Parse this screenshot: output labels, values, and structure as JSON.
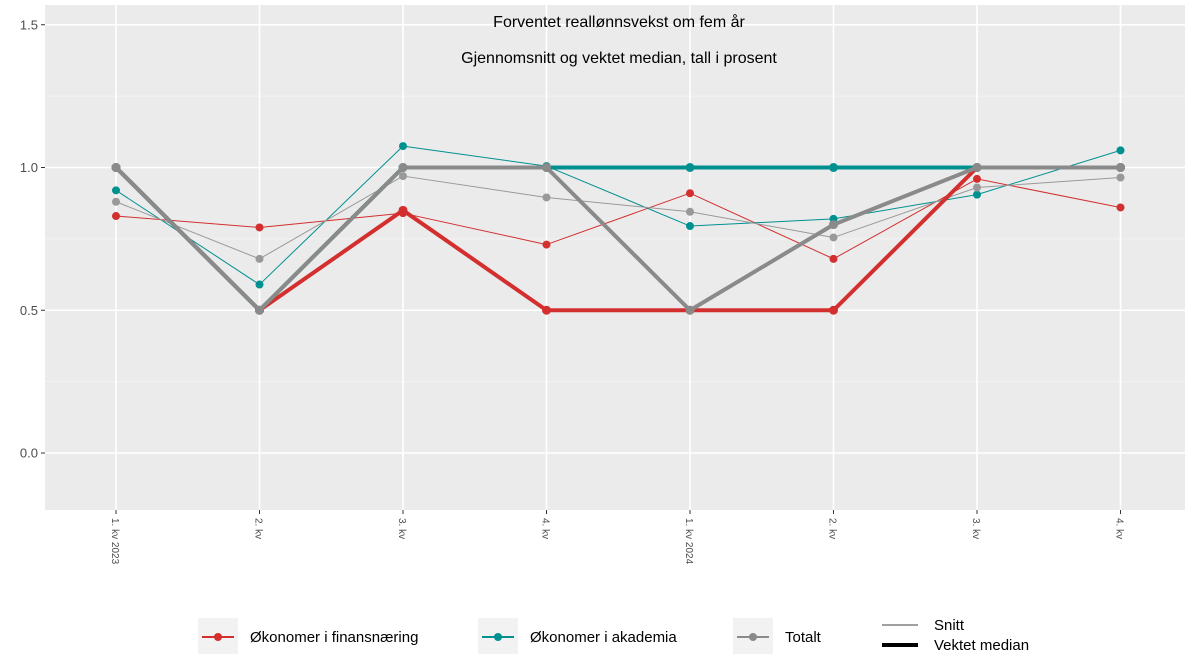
{
  "chart_data": {
    "type": "line",
    "title": "Forventet reallønnsvekst om fem år",
    "subtitle": "Gjennomsnitt og vektet median, tall i prosent",
    "xlabel": "",
    "ylabel": "",
    "ylim": [
      -0.2,
      1.55
    ],
    "yticks": [
      "0.0",
      "0.5",
      "1.0",
      "1.5"
    ],
    "ytick_values": [
      0.0,
      0.5,
      1.0,
      1.5
    ],
    "categories": [
      "1. kv 2023",
      "2. kv",
      "3. kv",
      "4. kv",
      "1. kv 2024",
      "2. kv",
      "3. kv",
      "4. kv"
    ],
    "grid": true,
    "legend_position": "bottom",
    "series": [
      {
        "name": "Økonomer i finansnæring",
        "stat": "Snitt",
        "color": "#d32f2f",
        "values": [
          0.83,
          0.79,
          0.84,
          0.73,
          0.91,
          0.68,
          0.96,
          0.86
        ]
      },
      {
        "name": "Økonomer i akademia",
        "stat": "Snitt",
        "color": "#009090",
        "values": [
          0.92,
          0.59,
          1.075,
          1.005,
          0.795,
          0.82,
          0.905,
          1.06
        ]
      },
      {
        "name": "Totalt",
        "stat": "Snitt",
        "color": "#999999",
        "values": [
          0.88,
          0.68,
          0.97,
          0.895,
          0.845,
          0.755,
          0.93,
          0.965
        ]
      },
      {
        "name": "Økonomer i finansnæring",
        "stat": "Vektet median",
        "color": "#d32f2f",
        "values": [
          1.0,
          0.5,
          0.85,
          0.5,
          0.5,
          0.5,
          1.0,
          1.0
        ]
      },
      {
        "name": "Økonomer i akademia",
        "stat": "Vektet median",
        "color": "#009090",
        "values": [
          1.0,
          0.5,
          1.0,
          1.0,
          1.0,
          1.0,
          1.0,
          1.0
        ]
      },
      {
        "name": "Totalt",
        "stat": "Vektet median",
        "color": "#8a8a8a",
        "values": [
          1.0,
          0.5,
          1.0,
          1.0,
          0.5,
          0.8,
          1.0,
          1.0
        ]
      }
    ],
    "legend": {
      "groups": [
        {
          "label": "Økonomer i finansnæring",
          "color": "#d32f2f"
        },
        {
          "label": "Økonomer i akademia",
          "color": "#009090"
        },
        {
          "label": "Totalt",
          "color": "#8a8a8a"
        }
      ],
      "linetypes": [
        {
          "label": "Snitt",
          "style": "thin"
        },
        {
          "label": "Vektet median",
          "style": "thick"
        }
      ]
    }
  }
}
